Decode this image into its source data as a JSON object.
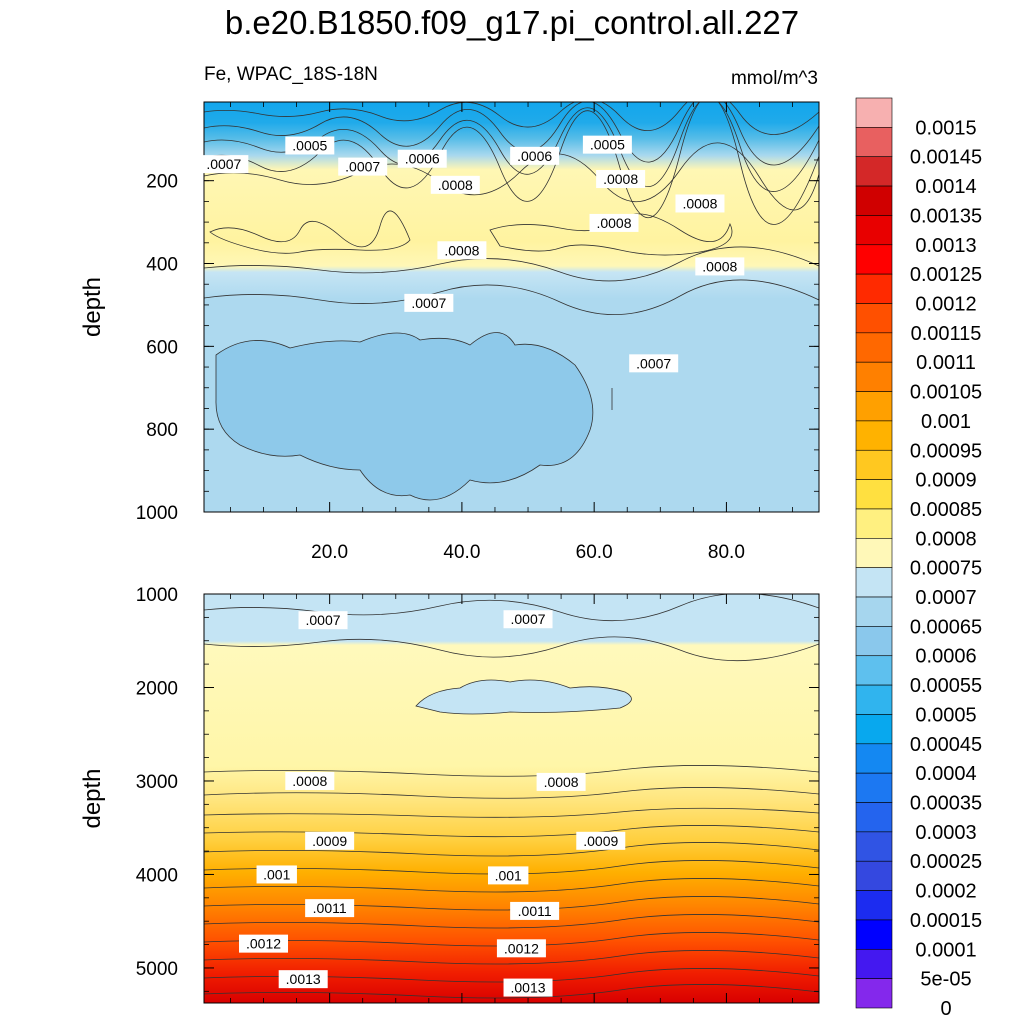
{
  "title": "b.e20.B1850.f09_g17.pi_control.all.227",
  "subtitle_left": "Fe, WPAC_18S-18N",
  "subtitle_right": "mmol/m^3",
  "chart_data": [
    {
      "type": "contour",
      "panel": "upper",
      "ylabel": "depth",
      "xlabel": "",
      "xlim": [
        1,
        94
      ],
      "ylim": [
        1000,
        10
      ],
      "xticks": [
        20,
        40,
        60,
        80
      ],
      "xtick_labels": [
        "20.0",
        "40.0",
        "60.0",
        "80.0"
      ],
      "yticks": [
        200,
        400,
        600,
        800,
        1000
      ],
      "ytick_labels": [
        "200",
        "400",
        "600",
        "800",
        "1000"
      ],
      "contour_labels": [
        {
          "text": ".0005",
          "x": 17,
          "y": 115
        },
        {
          "text": ".0005",
          "x": 62,
          "y": 113
        },
        {
          "text": ".0006",
          "x": 34,
          "y": 147
        },
        {
          "text": ".0006",
          "x": 51,
          "y": 140
        },
        {
          "text": ".0007",
          "x": 4,
          "y": 160
        },
        {
          "text": ".0007",
          "x": 25,
          "y": 166
        },
        {
          "text": ".0008",
          "x": 39,
          "y": 210
        },
        {
          "text": ".0008",
          "x": 64,
          "y": 196
        },
        {
          "text": ".0008",
          "x": 63,
          "y": 302
        },
        {
          "text": ".0008",
          "x": 76,
          "y": 255
        },
        {
          "text": ".0008",
          "x": 40,
          "y": 368
        },
        {
          "text": ".0008",
          "x": 79,
          "y": 407
        },
        {
          "text": ".0007",
          "x": 35,
          "y": 495
        },
        {
          "text": ".0007",
          "x": 69,
          "y": 641
        }
      ]
    },
    {
      "type": "contour",
      "panel": "lower",
      "ylabel": "depth",
      "xlabel": "",
      "xlim": [
        1,
        94
      ],
      "ylim": [
        5375,
        1000
      ],
      "yticks": [
        1000,
        2000,
        3000,
        4000,
        5000
      ],
      "ytick_labels": [
        "1000",
        "2000",
        "3000",
        "4000",
        "5000"
      ],
      "contour_labels": [
        {
          "text": ".0007",
          "x": 19,
          "y": 1280
        },
        {
          "text": ".0007",
          "x": 50,
          "y": 1270
        },
        {
          "text": ".0008",
          "x": 17,
          "y": 3000
        },
        {
          "text": ".0008",
          "x": 55,
          "y": 3010
        },
        {
          "text": ".0009",
          "x": 20,
          "y": 3640
        },
        {
          "text": ".0009",
          "x": 61,
          "y": 3640
        },
        {
          "text": ".001",
          "x": 12,
          "y": 4000
        },
        {
          "text": ".001",
          "x": 47,
          "y": 4010
        },
        {
          "text": ".0011",
          "x": 20,
          "y": 4360
        },
        {
          "text": ".0011",
          "x": 51,
          "y": 4390
        },
        {
          "text": ".0012",
          "x": 10,
          "y": 4740
        },
        {
          "text": ".0012",
          "x": 49,
          "y": 4790
        },
        {
          "text": ".0013",
          "x": 16,
          "y": 5120
        },
        {
          "text": ".0013",
          "x": 50,
          "y": 5210
        }
      ]
    }
  ],
  "colorbar": {
    "labels": [
      "0.0015",
      "0.00145",
      "0.0014",
      "0.00135",
      "0.0013",
      "0.00125",
      "0.0012",
      "0.00115",
      "0.0011",
      "0.00105",
      "0.001",
      "0.00095",
      "0.0009",
      "0.00085",
      "0.0008",
      "0.00075",
      "0.0007",
      "0.00065",
      "0.0006",
      "0.00055",
      "0.0005",
      "0.00045",
      "0.0004",
      "0.00035",
      "0.0003",
      "0.00025",
      "0.0002",
      "0.00015",
      "0.0001",
      "5e-05",
      "0"
    ],
    "colors": [
      "#f7b0b0",
      "#e86060",
      "#d42828",
      "#d00000",
      "#e80000",
      "#ff0000",
      "#ff2a00",
      "#ff5000",
      "#ff6800",
      "#ff8000",
      "#ffa000",
      "#ffb200",
      "#ffc820",
      "#ffe040",
      "#fff080",
      "#fff8b8",
      "#c4e4f4",
      "#a6d6ee",
      "#8ac8ec",
      "#5ec0ee",
      "#30b4ee",
      "#08a8ee",
      "#1488f2",
      "#1c78f2",
      "#2464ee",
      "#3054e4",
      "#3448e0",
      "#1c2cf0",
      "#0000ff",
      "#4418f0",
      "#8428ec"
    ]
  }
}
